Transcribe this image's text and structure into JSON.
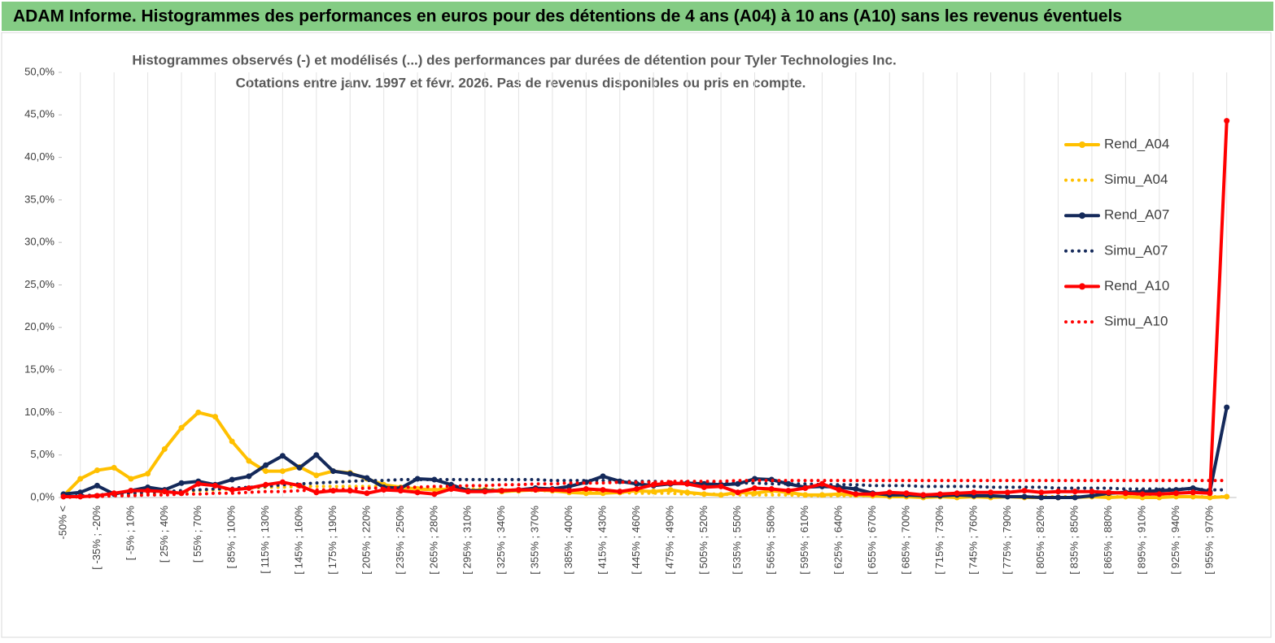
{
  "header": "ADAM Informe. Histogrammes des performances en euros pour des détentions de 4 ans (A04) à 10 ans (A10) sans les revenus éventuels",
  "chart_data": {
    "type": "line",
    "title": "Histogrammes observés (-) et modélisés (...) des performances par durées de détention pour Tyler Technologies Inc.",
    "subtitle": "Cotations entre janv. 1997 et févr. 2026. Pas de revenus disponibles ou pris en compte.",
    "categories": [
      "-50% <",
      null,
      "[ -35% ; -20%",
      null,
      "[ -5% ; 10%",
      null,
      "[ 25% ; 40%",
      null,
      "[ 55% ; 70%",
      null,
      "[ 85% ; 100%",
      null,
      "[ 115% ; 130%",
      null,
      "[ 145% ; 160%",
      null,
      "[ 175% ; 190%",
      null,
      "[ 205% ; 220%",
      null,
      "[ 235% ; 250%",
      null,
      "[ 265% ; 280%",
      null,
      "[ 295% ; 310%",
      null,
      "[ 325% ; 340%",
      null,
      "[ 355% ; 370%",
      null,
      "[ 385% ; 400%",
      null,
      "[ 415% ; 430%",
      null,
      "[ 445% ; 460%",
      null,
      "[ 475% ; 490%",
      null,
      "[ 505% ; 520%",
      null,
      "[ 535% ; 550%",
      null,
      "[ 565% ; 580%",
      null,
      "[ 595% ; 610%",
      null,
      "[ 625% ; 640%",
      null,
      "[ 655% ; 670%",
      null,
      "[ 685% ; 700%",
      null,
      "[ 715% ; 730%",
      null,
      "[ 745% ; 760%",
      null,
      "[ 775% ; 790%",
      null,
      "[ 805% ; 820%",
      null,
      "[ 835% ; 850%",
      null,
      "[ 865% ; 880%",
      null,
      "[ 895% ; 910%",
      null,
      "[ 925% ; 940%",
      null,
      "[ 955% ; 970%",
      null
    ],
    "series": [
      {
        "name": "Rend_A04",
        "color": "#ffc000",
        "dotted": false,
        "markers": true,
        "values": [
          0.2,
          2.2,
          3.2,
          3.5,
          2.2,
          2.8,
          5.7,
          8.2,
          10.0,
          9.5,
          6.6,
          4.3,
          3.1,
          3.1,
          3.6,
          2.6,
          3.1,
          2.9,
          2.2,
          1.5,
          1.2,
          1.0,
          0.9,
          1.0,
          0.8,
          0.9,
          0.7,
          0.8,
          0.9,
          0.8,
          0.6,
          0.5,
          0.5,
          0.6,
          0.8,
          0.7,
          0.9,
          0.6,
          0.4,
          0.3,
          0.6,
          0.5,
          0.8,
          0.6,
          0.3,
          0.3,
          0.4,
          0.3,
          0.2,
          0.1,
          0.1,
          0.0,
          0.1,
          0.0,
          0.1,
          0.0,
          0.1,
          0.0,
          0.0,
          0.0,
          0.0,
          0.1,
          0.0,
          0.1,
          0.0,
          0.0,
          0.1,
          0.1,
          0.0,
          0.1
        ]
      },
      {
        "name": "Simu_A04",
        "color": "#ffc000",
        "dotted": true,
        "markers": false,
        "values": [
          0.0,
          0.1,
          0.2,
          0.3,
          0.4,
          0.5,
          0.6,
          0.7,
          0.8,
          0.9,
          1.0,
          1.1,
          1.2,
          1.2,
          1.3,
          1.3,
          1.3,
          1.3,
          1.3,
          1.3,
          1.2,
          1.2,
          1.1,
          1.1,
          1.0,
          1.0,
          0.9,
          0.9,
          0.8,
          0.8,
          0.7,
          0.7,
          0.6,
          0.6,
          0.5,
          0.5,
          0.5,
          0.4,
          0.4,
          0.4,
          0.3,
          0.3,
          0.3,
          0.3,
          0.2,
          0.2,
          0.2,
          0.2,
          0.2,
          0.2,
          0.1,
          0.1,
          0.1,
          0.1,
          0.1,
          0.1,
          0.1,
          0.1,
          0.1,
          0.1,
          0.1,
          0.1,
          0.1,
          0.1,
          0.1,
          0.1,
          0.1,
          0.1,
          0.1,
          0.1
        ]
      },
      {
        "name": "Rend_A07",
        "color": "#14295a",
        "dotted": false,
        "markers": true,
        "values": [
          0.4,
          0.6,
          1.4,
          0.4,
          0.8,
          1.2,
          0.9,
          1.7,
          1.9,
          1.5,
          2.1,
          2.5,
          3.8,
          4.9,
          3.5,
          5.0,
          3.1,
          2.8,
          2.3,
          1.2,
          1.1,
          2.2,
          2.1,
          1.5,
          0.8,
          0.8,
          0.8,
          0.9,
          1.1,
          1.0,
          1.3,
          1.8,
          2.5,
          1.9,
          1.6,
          1.4,
          1.6,
          1.7,
          1.6,
          1.5,
          1.6,
          2.2,
          2.1,
          1.6,
          1.2,
          1.3,
          1.2,
          1.0,
          0.5,
          0.3,
          0.3,
          0.2,
          0.2,
          0.3,
          0.2,
          0.2,
          0.1,
          0.1,
          0.0,
          0.0,
          0.0,
          0.2,
          0.5,
          0.6,
          0.7,
          0.8,
          0.9,
          1.1,
          0.7,
          10.6
        ]
      },
      {
        "name": "Simu_A07",
        "color": "#14295a",
        "dotted": true,
        "markers": false,
        "values": [
          0.1,
          0.2,
          0.3,
          0.4,
          0.5,
          0.6,
          0.7,
          0.8,
          0.9,
          1.0,
          1.1,
          1.2,
          1.3,
          1.5,
          1.6,
          1.7,
          1.8,
          1.9,
          2.0,
          2.0,
          2.1,
          2.1,
          2.1,
          2.1,
          2.1,
          2.1,
          2.1,
          2.1,
          2.1,
          2.0,
          2.0,
          2.0,
          2.0,
          1.9,
          1.9,
          1.9,
          1.8,
          1.8,
          1.8,
          1.7,
          1.7,
          1.7,
          1.6,
          1.6,
          1.6,
          1.5,
          1.5,
          1.5,
          1.4,
          1.4,
          1.4,
          1.3,
          1.3,
          1.3,
          1.3,
          1.2,
          1.2,
          1.2,
          1.2,
          1.1,
          1.1,
          1.1,
          1.1,
          1.0,
          1.0,
          1.0,
          1.0,
          1.0,
          0.9,
          0.9
        ]
      },
      {
        "name": "Rend_A10",
        "color": "#ff0000",
        "dotted": false,
        "markers": true,
        "values": [
          0.1,
          0.1,
          0.2,
          0.5,
          0.8,
          0.8,
          0.7,
          0.5,
          1.6,
          1.4,
          0.9,
          1.1,
          1.5,
          1.8,
          1.4,
          0.6,
          0.8,
          0.8,
          0.5,
          0.9,
          0.8,
          0.6,
          0.4,
          1.0,
          0.7,
          0.7,
          0.8,
          0.9,
          0.9,
          0.9,
          0.8,
          1.0,
          0.9,
          0.7,
          1.0,
          1.5,
          1.7,
          1.6,
          1.2,
          1.3,
          0.6,
          1.1,
          1.0,
          0.8,
          1.1,
          1.6,
          0.9,
          0.4,
          0.4,
          0.6,
          0.5,
          0.3,
          0.4,
          0.5,
          0.6,
          0.6,
          0.6,
          0.8,
          0.6,
          0.7,
          0.7,
          0.7,
          0.6,
          0.5,
          0.4,
          0.4,
          0.5,
          0.6,
          0.5,
          44.3
        ]
      },
      {
        "name": "Simu_A10",
        "color": "#ff0000",
        "dotted": true,
        "markers": false,
        "values": [
          0.0,
          0.1,
          0.1,
          0.2,
          0.2,
          0.3,
          0.3,
          0.4,
          0.4,
          0.5,
          0.5,
          0.6,
          0.7,
          0.7,
          0.8,
          0.9,
          0.9,
          1.0,
          1.1,
          1.1,
          1.2,
          1.2,
          1.3,
          1.3,
          1.4,
          1.4,
          1.5,
          1.5,
          1.6,
          1.6,
          1.7,
          1.7,
          1.7,
          1.8,
          1.8,
          1.8,
          1.9,
          1.9,
          1.9,
          1.9,
          2.0,
          2.0,
          2.0,
          2.0,
          2.0,
          2.0,
          2.0,
          2.0,
          2.0,
          2.0,
          2.0,
          2.0,
          2.0,
          2.0,
          2.0,
          2.0,
          2.0,
          2.0,
          2.0,
          2.0,
          2.0,
          2.0,
          2.0,
          2.0,
          2.0,
          2.0,
          2.0,
          2.0,
          2.0,
          2.0
        ]
      }
    ],
    "ylim": [
      0,
      50
    ],
    "yticks": [
      {
        "value": 0,
        "label": "0,0%"
      },
      {
        "value": 5,
        "label": "5,0%"
      },
      {
        "value": 10,
        "label": "10,0%"
      },
      {
        "value": 15,
        "label": "15,0%"
      },
      {
        "value": 20,
        "label": "20,0%"
      },
      {
        "value": 25,
        "label": "25,0%"
      },
      {
        "value": 30,
        "label": "30,0%"
      },
      {
        "value": 35,
        "label": "35,0%"
      },
      {
        "value": 40,
        "label": "40,0%"
      },
      {
        "value": 45,
        "label": "45,0%"
      },
      {
        "value": 50,
        "label": "50,0%"
      }
    ],
    "grid": true,
    "legend": "right"
  }
}
